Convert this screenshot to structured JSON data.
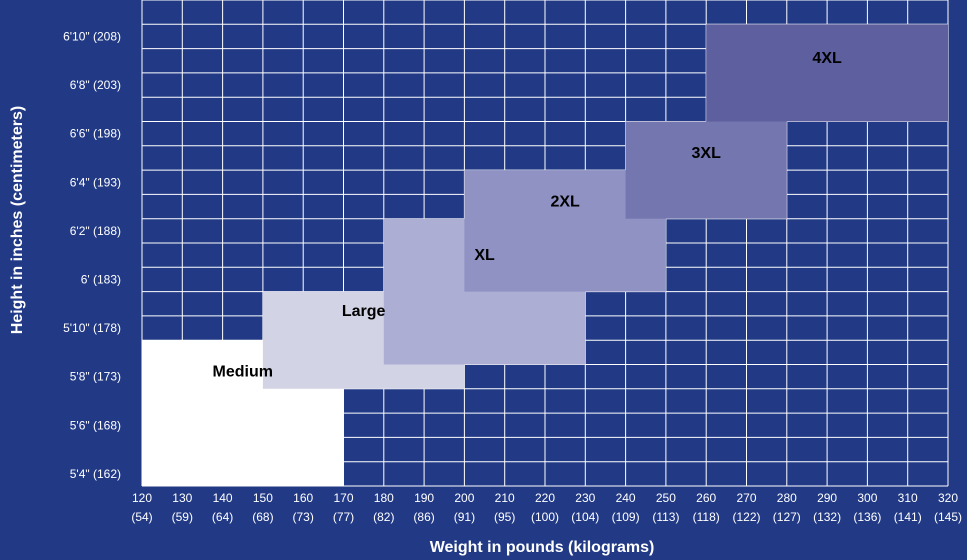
{
  "chart_data": {
    "type": "heatmap",
    "xlabel": "Weight in pounds (kilograms)",
    "ylabel": "Height in inches (centimeters)",
    "x_ticks": [
      {
        "lbs": "120",
        "kg": "(54)"
      },
      {
        "lbs": "130",
        "kg": "(59)"
      },
      {
        "lbs": "140",
        "kg": "(64)"
      },
      {
        "lbs": "150",
        "kg": "(68)"
      },
      {
        "lbs": "160",
        "kg": "(73)"
      },
      {
        "lbs": "170",
        "kg": "(77)"
      },
      {
        "lbs": "180",
        "kg": "(82)"
      },
      {
        "lbs": "190",
        "kg": "(86)"
      },
      {
        "lbs": "200",
        "kg": "(91)"
      },
      {
        "lbs": "210",
        "kg": "(95)"
      },
      {
        "lbs": "220",
        "kg": "(100)"
      },
      {
        "lbs": "230",
        "kg": "(104)"
      },
      {
        "lbs": "240",
        "kg": "(109)"
      },
      {
        "lbs": "250",
        "kg": "(113)"
      },
      {
        "lbs": "260",
        "kg": "(118)"
      },
      {
        "lbs": "270",
        "kg": "(122)"
      },
      {
        "lbs": "280",
        "kg": "(127)"
      },
      {
        "lbs": "290",
        "kg": "(132)"
      },
      {
        "lbs": "300",
        "kg": "(136)"
      },
      {
        "lbs": "310",
        "kg": "(141)"
      },
      {
        "lbs": "320",
        "kg": "(145)"
      }
    ],
    "y_ticks": [
      {
        "label": "5'4\"  (162)",
        "in": 64
      },
      {
        "label": "5'6\"  (168)",
        "in": 66
      },
      {
        "label": "5'8\"  (173)",
        "in": 68
      },
      {
        "label": "5'10\" (178)",
        "in": 70
      },
      {
        "label": "6'  (183)",
        "in": 72
      },
      {
        "label": "6'2\"  (188)",
        "in": 74
      },
      {
        "label": "6'4\"  (193)",
        "in": 76
      },
      {
        "label": "6'6\"  (198)",
        "in": 78
      },
      {
        "label": "6'8\"  (203)",
        "in": 80
      },
      {
        "label": "6'10\" (208)",
        "in": 82
      }
    ],
    "xlim_lbs": [
      120,
      320
    ],
    "ylim_in": [
      63.5,
      83.5
    ],
    "grid": true,
    "zones": [
      {
        "label": "Medium",
        "lbs": [
          120,
          170
        ],
        "in": [
          63.5,
          69.5
        ],
        "color": "#ffffff"
      },
      {
        "label": "Large",
        "lbs": [
          150,
          200
        ],
        "in": [
          67.5,
          71.5
        ],
        "color": "#d3d3e6"
      },
      {
        "label": "XL",
        "lbs": [
          180,
          230
        ],
        "in": [
          68.5,
          74.5
        ],
        "color": "#acaed3"
      },
      {
        "label": "2XL",
        "lbs": [
          200,
          250
        ],
        "in": [
          71.5,
          76.5
        ],
        "color": "#8f92c3"
      },
      {
        "label": "3XL",
        "lbs": [
          240,
          280
        ],
        "in": [
          74.5,
          78.5
        ],
        "color": "#7476af"
      },
      {
        "label": "4XL",
        "lbs": [
          260,
          320
        ],
        "in": [
          78.5,
          82.5
        ],
        "color": "#5d5f9e"
      }
    ],
    "colors": {
      "background": "#223a86",
      "grid": "#ffffff",
      "text": "#ffffff"
    }
  }
}
